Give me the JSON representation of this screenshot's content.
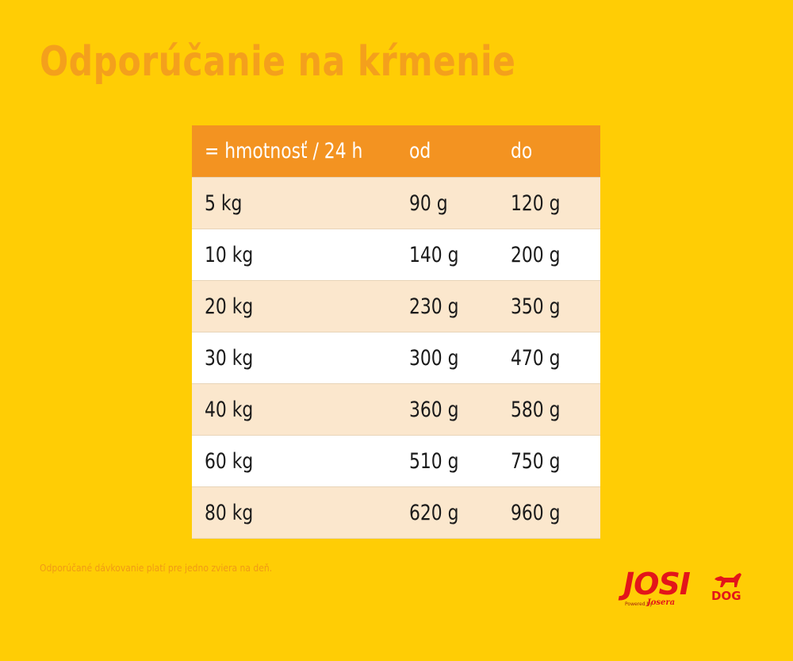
{
  "title": "Odporúčanie na kŕmenie",
  "table": {
    "headers": [
      "= hmotnosť / 24 h",
      "od",
      "do"
    ],
    "rows": [
      [
        "5 kg",
        "90 g",
        "120 g"
      ],
      [
        "10 kg",
        "140 g",
        "200 g"
      ],
      [
        "20 kg",
        "230 g",
        "350 g"
      ],
      [
        "30 kg",
        "300 g",
        "470 g"
      ],
      [
        "40 kg",
        "360 g",
        "580 g"
      ],
      [
        "60 kg",
        "510 g",
        "750 g"
      ],
      [
        "80 kg",
        "620 g",
        "960 g"
      ]
    ]
  },
  "note": "Odporúčané dávkovanie platí pre jedno zviera na deň.",
  "logo": {
    "main": "JOSI",
    "sub": "DOG",
    "powered": "Powered by",
    "josera": "Josera",
    "icon": "dog-icon"
  },
  "colors": {
    "background": "#ffcd05",
    "title": "#f4a01c",
    "header": "#f39321",
    "row_odd": "#fbe7cd",
    "row_even": "#ffffff",
    "brand_red": "#e3151a"
  }
}
